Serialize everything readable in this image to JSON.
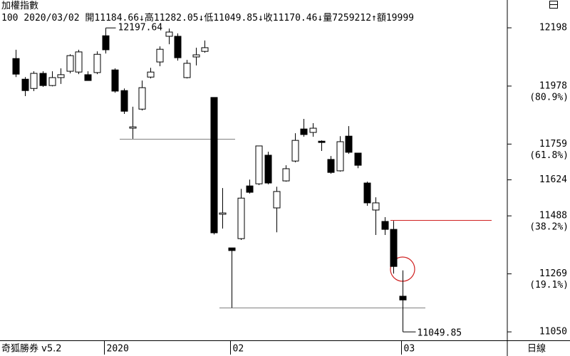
{
  "chart_data": {
    "type": "candlestick",
    "title": "加權指數",
    "header": {
      "period": "100",
      "date": "2020/03/02",
      "items": [
        {
          "text": "開11184.66",
          "arrow": "↓"
        },
        {
          "text": "高11282.05",
          "arrow": "↓"
        },
        {
          "text": "低11049.85",
          "arrow": "↓"
        },
        {
          "text": "收11170.46",
          "arrow": "↓"
        },
        {
          "text": "量7259212",
          "arrow": "↑"
        },
        {
          "text": "額19999",
          "arrow": ""
        }
      ]
    },
    "software": "奇狐勝券 v5.2",
    "period_label": "日線",
    "categories": [
      null,
      null,
      null,
      null,
      null,
      null,
      null,
      null,
      null,
      null,
      "2020",
      null,
      null,
      null,
      null,
      null,
      null,
      null,
      null,
      null,
      null,
      null,
      null,
      null,
      "02",
      null,
      null,
      null,
      null,
      null,
      null,
      null,
      null,
      null,
      null,
      null,
      null,
      null,
      null,
      null,
      null,
      null,
      null,
      "03"
    ],
    "open": [
      12082,
      12004,
      11969,
      12026,
      11980,
      12010,
      12034,
      12031,
      12021,
      12029,
      12168,
      12039,
      11961,
      11819,
      11891,
      12012,
      12069,
      12166,
      12166,
      12010,
      12088,
      12109,
      11935,
      11494,
      11367,
      11402,
      11601,
      11609,
      11717,
      11518,
      11620,
      11695,
      11816,
      11803,
      11770,
      11701,
      11658,
      11789,
      11725,
      11612,
      11510,
      11467,
      11437,
      11184.66
    ],
    "high": [
      12115,
      12012,
      12034,
      12034,
      12034,
      12045,
      12098,
      12115,
      12034,
      12109,
      12197.64,
      12045,
      11969,
      11900,
      11999,
      12047,
      12128,
      12195,
      12177,
      12077,
      12123,
      12150,
      11935,
      11593,
      11367,
      11590,
      11625,
      11752,
      11730,
      11598,
      11679,
      11800,
      11854,
      11838,
      11773,
      11714,
      11789,
      11827,
      11725,
      11617,
      11558,
      11483,
      11469,
      11282.05
    ],
    "low": [
      12012,
      11940,
      11959,
      11975,
      11977,
      11986,
      12026,
      12023,
      11999,
      12023,
      12101,
      11953,
      11873,
      11779,
      11886,
      12007,
      12053,
      12136,
      12074,
      12007,
      12056,
      12104,
      11418,
      11440,
      11141,
      11397,
      11572,
      11604,
      11607,
      11426,
      11617,
      11690,
      11787,
      11787,
      11733,
      11647,
      11655,
      11722,
      11668,
      11526,
      11416,
      11416,
      11270,
      11049.85
    ],
    "close": [
      12023,
      11961,
      12026,
      11980,
      12010,
      12021,
      12093,
      12107,
      11999,
      12098,
      12115,
      11959,
      11883,
      11824,
      11972,
      12031,
      12117,
      12182,
      12085,
      12064,
      12096,
      12123,
      11424,
      11499,
      11357,
      11555,
      11577,
      11752,
      11612,
      11580,
      11666,
      11773,
      11795,
      11819,
      11765,
      11652,
      11768,
      11728,
      11679,
      11537,
      11537,
      11437,
      11297,
      11170.46
    ],
    "up_color": "#ffffff",
    "down_color": "#000000",
    "high_label": "12197.64",
    "low_label": "11049.85",
    "ylim": [
      11018,
      12303
    ],
    "yticks": [
      12198,
      11978,
      11759,
      11624,
      11488,
      11269,
      11050
    ],
    "retracement_labels": [
      {
        "value": 11978,
        "label": "(80.9%)"
      },
      {
        "value": 11759,
        "label": "(61.8%)"
      },
      {
        "value": 11488,
        "label": "(38.2%)"
      },
      {
        "value": 11269,
        "label": "(19.1%)"
      }
    ],
    "hlines": [
      {
        "value": 11779,
        "color": "#808080"
      },
      {
        "value": 11141,
        "color": "#808080"
      },
      {
        "value": 11472,
        "color": "#d02020"
      }
    ]
  }
}
